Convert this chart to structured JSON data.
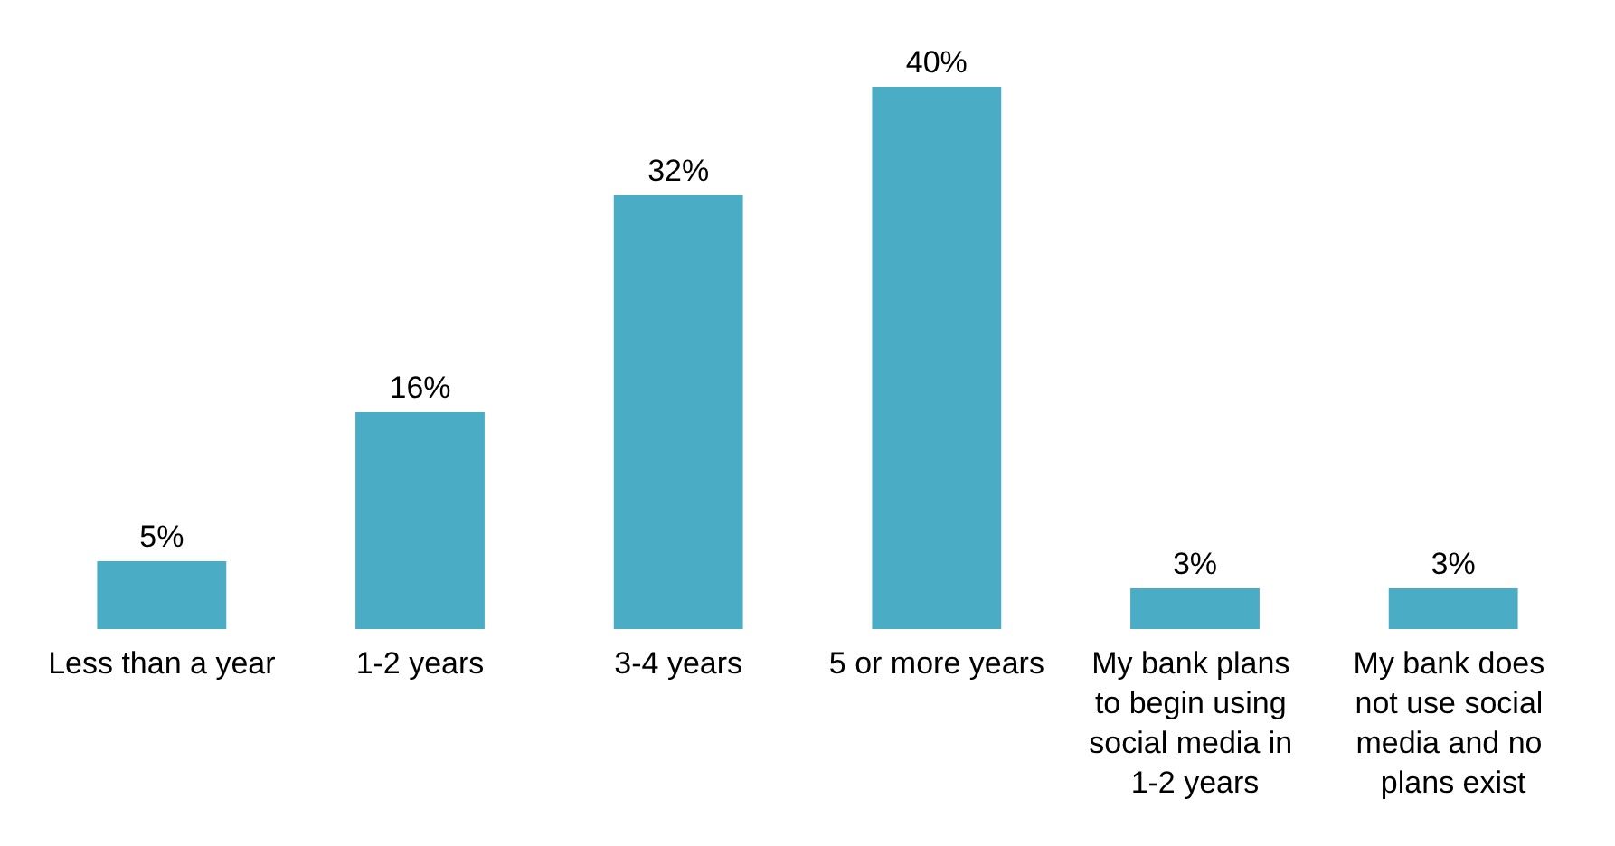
{
  "chart_data": {
    "type": "bar",
    "categories": [
      "Less than a year",
      "1-2 years",
      "3-4 years",
      "5 or more years",
      "My bank plans to begin using social media in 1-2 years",
      "My bank does not use social media and no plans exist"
    ],
    "values": [
      5,
      16,
      32,
      40,
      3,
      3
    ],
    "value_labels": [
      "5%",
      "16%",
      "32%",
      "40%",
      "3%",
      "3%"
    ],
    "color": "#4bacc6"
  }
}
